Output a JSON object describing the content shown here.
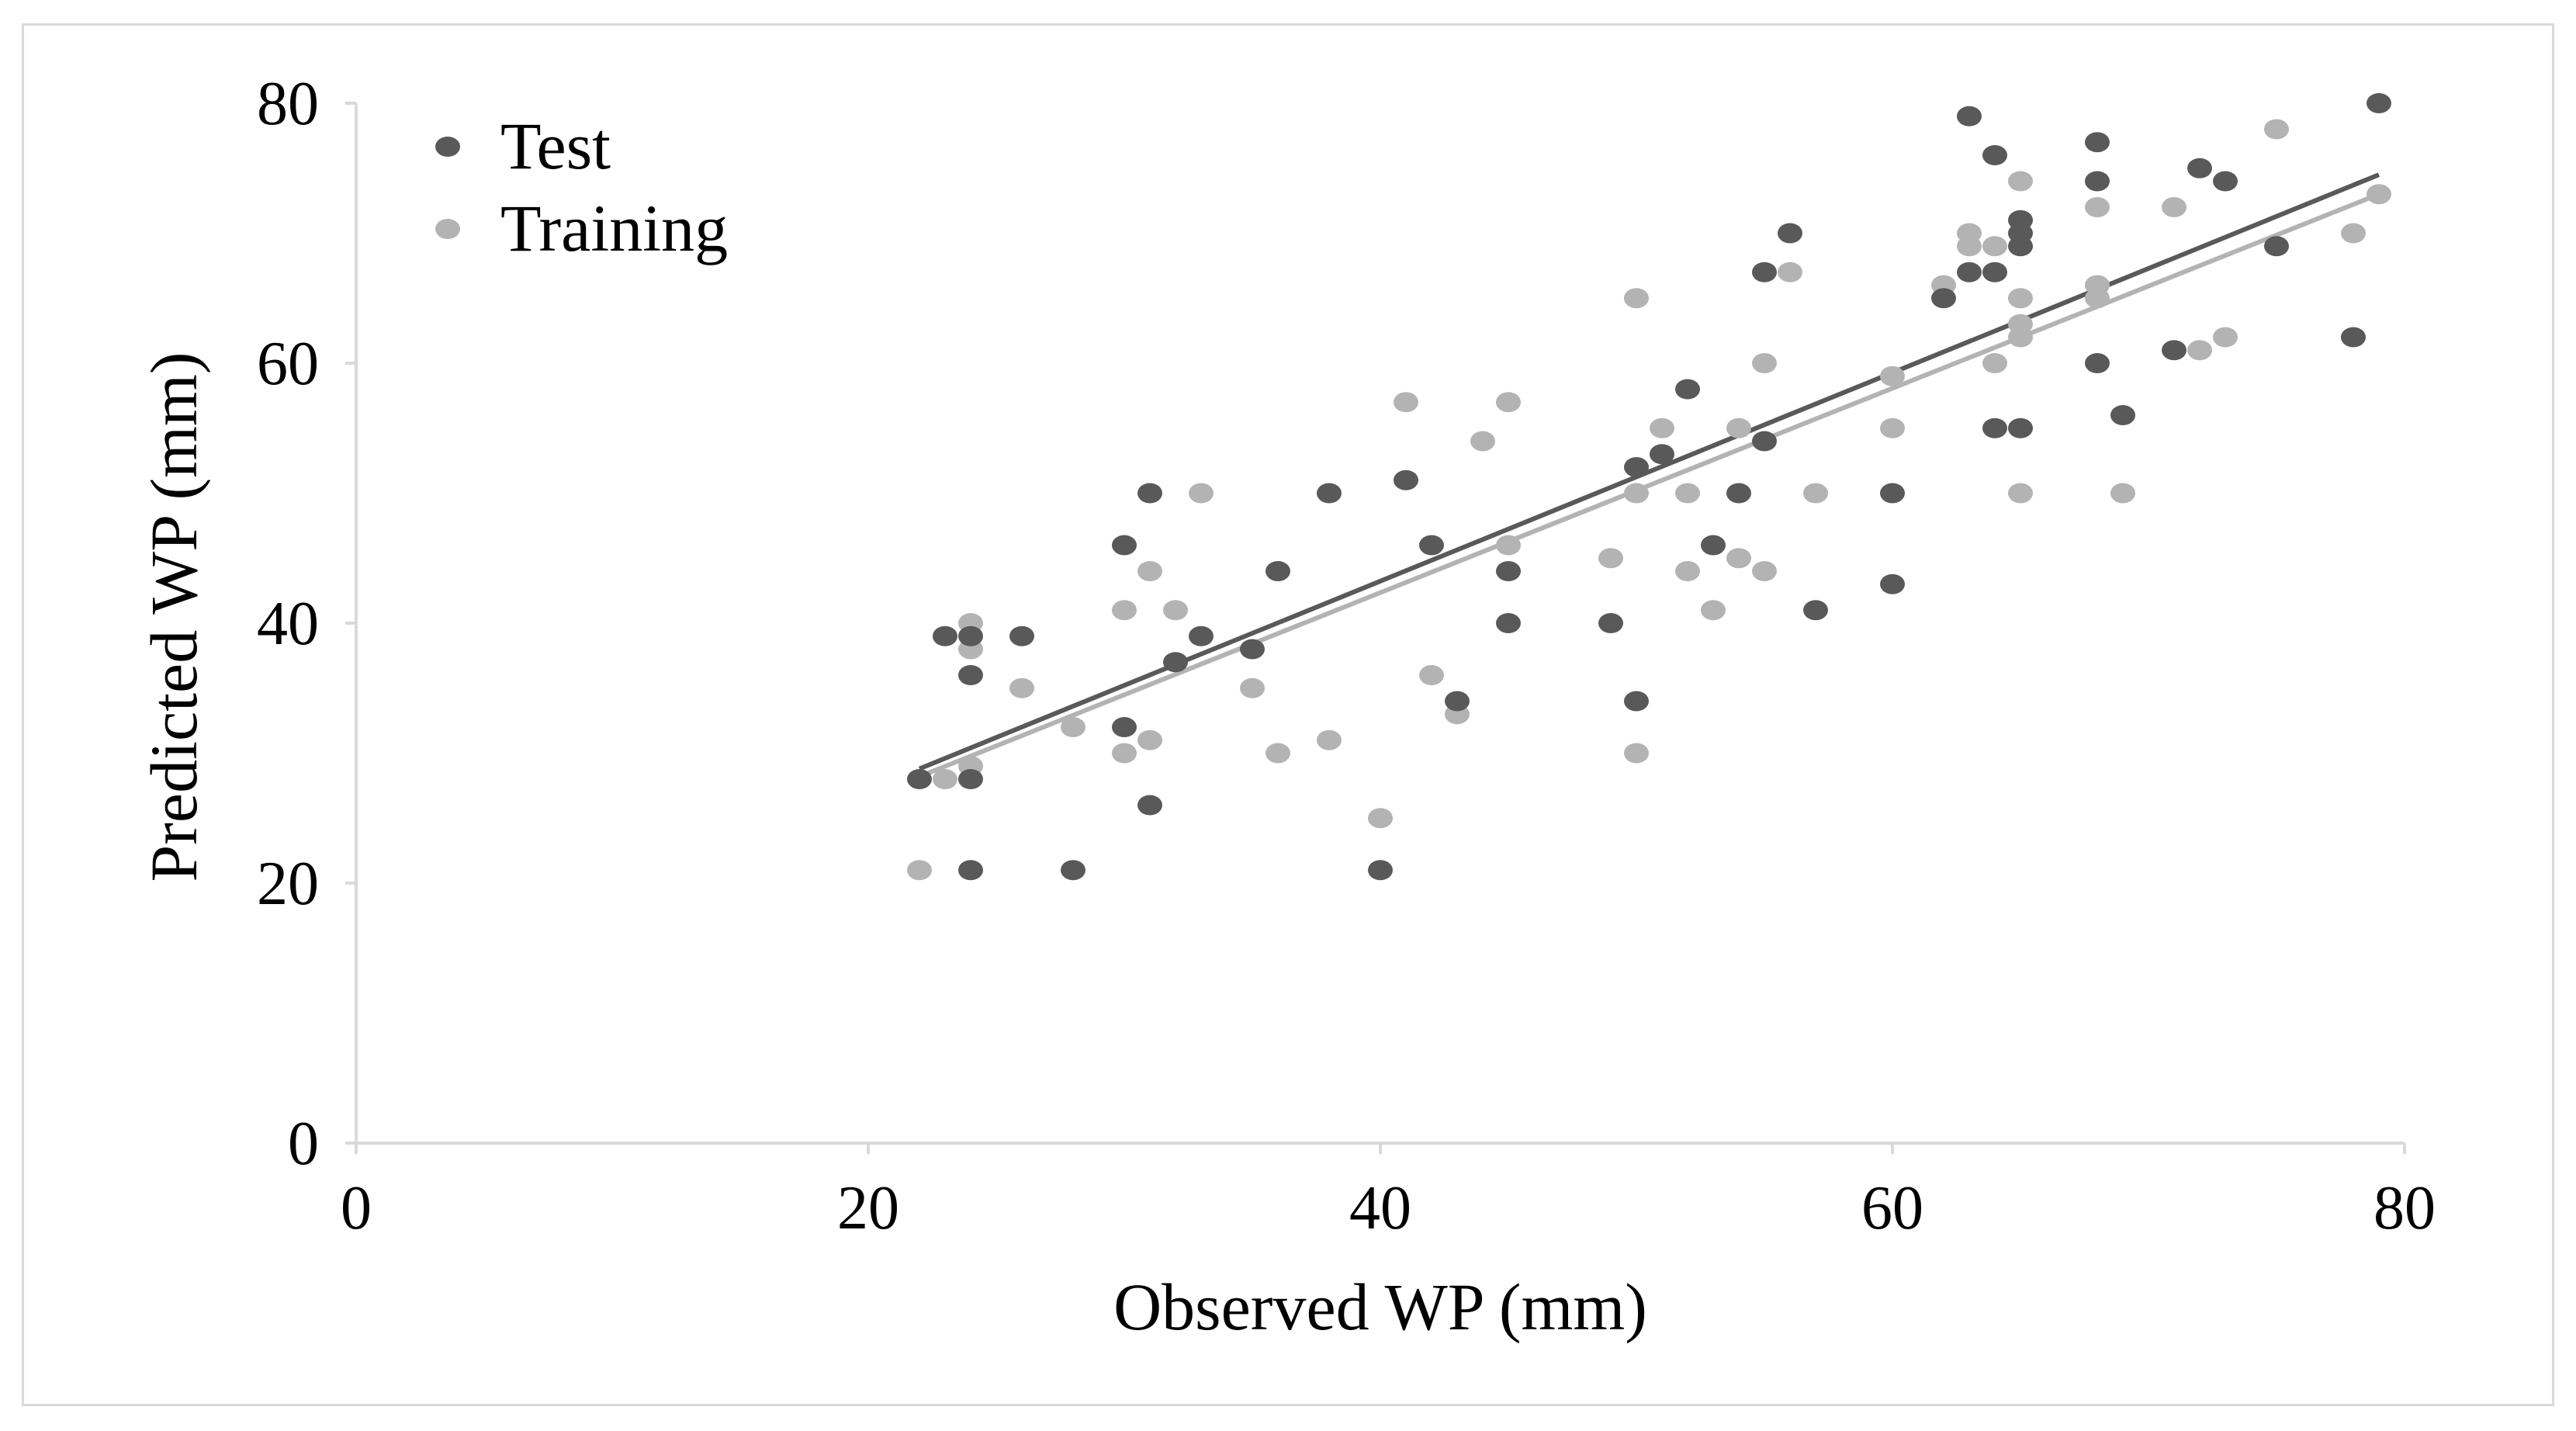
{
  "chart_data": {
    "type": "scatter",
    "title": "",
    "xlabel": "Observed WP (mm)",
    "ylabel": "Predicted WP (mm)",
    "xlim": [
      0,
      80
    ],
    "ylim": [
      0,
      80
    ],
    "xticks": [
      0,
      20,
      40,
      60,
      80
    ],
    "yticks": [
      0,
      20,
      40,
      60,
      80
    ],
    "grid": false,
    "legend_position": "top-left",
    "series": [
      {
        "name": "Test",
        "color": "#595959",
        "points": [
          [
            22,
            28
          ],
          [
            23,
            39
          ],
          [
            24,
            36
          ],
          [
            24,
            28
          ],
          [
            24,
            21
          ],
          [
            24,
            39
          ],
          [
            26,
            39
          ],
          [
            28,
            21
          ],
          [
            30,
            46
          ],
          [
            30,
            32
          ],
          [
            31,
            50
          ],
          [
            31,
            26
          ],
          [
            32,
            37
          ],
          [
            33,
            39
          ],
          [
            35,
            38
          ],
          [
            36,
            44
          ],
          [
            38,
            50
          ],
          [
            40,
            21
          ],
          [
            41,
            51
          ],
          [
            42,
            46
          ],
          [
            43,
            34
          ],
          [
            45,
            44
          ],
          [
            45,
            40
          ],
          [
            49,
            40
          ],
          [
            50,
            52
          ],
          [
            50,
            34
          ],
          [
            51,
            53
          ],
          [
            52,
            58
          ],
          [
            53,
            46
          ],
          [
            54,
            50
          ],
          [
            55,
            67
          ],
          [
            55,
            54
          ],
          [
            56,
            70
          ],
          [
            57,
            41
          ],
          [
            60,
            50
          ],
          [
            60,
            43
          ],
          [
            62,
            65
          ],
          [
            63,
            79
          ],
          [
            63,
            67
          ],
          [
            64,
            76
          ],
          [
            64,
            67
          ],
          [
            64,
            55
          ],
          [
            65,
            71
          ],
          [
            65,
            70
          ],
          [
            65,
            69
          ],
          [
            65,
            55
          ],
          [
            68,
            77
          ],
          [
            68,
            74
          ],
          [
            68,
            60
          ],
          [
            69,
            56
          ],
          [
            71,
            61
          ],
          [
            72,
            75
          ],
          [
            73,
            74
          ],
          [
            75,
            69
          ],
          [
            78,
            62
          ],
          [
            79,
            80
          ]
        ],
        "trendline": {
          "x": [
            22,
            79
          ],
          "y": [
            28.8,
            74.5
          ]
        }
      },
      {
        "name": "Training",
        "color": "#b3b3b3",
        "points": [
          [
            22,
            21
          ],
          [
            23,
            28
          ],
          [
            24,
            40
          ],
          [
            24,
            38
          ],
          [
            24,
            29
          ],
          [
            26,
            35
          ],
          [
            28,
            32
          ],
          [
            30,
            41
          ],
          [
            30,
            30
          ],
          [
            31,
            44
          ],
          [
            31,
            31
          ],
          [
            32,
            41
          ],
          [
            33,
            50
          ],
          [
            35,
            35
          ],
          [
            36,
            30
          ],
          [
            38,
            31
          ],
          [
            40,
            25
          ],
          [
            41,
            57
          ],
          [
            42,
            36
          ],
          [
            43,
            33
          ],
          [
            44,
            54
          ],
          [
            45,
            57
          ],
          [
            45,
            46
          ],
          [
            49,
            45
          ],
          [
            50,
            65
          ],
          [
            50,
            50
          ],
          [
            50,
            30
          ],
          [
            51,
            55
          ],
          [
            52,
            50
          ],
          [
            52,
            44
          ],
          [
            53,
            41
          ],
          [
            54,
            55
          ],
          [
            54,
            45
          ],
          [
            55,
            60
          ],
          [
            55,
            44
          ],
          [
            56,
            67
          ],
          [
            57,
            50
          ],
          [
            60,
            59
          ],
          [
            60,
            55
          ],
          [
            62,
            66
          ],
          [
            63,
            70
          ],
          [
            63,
            69
          ],
          [
            64,
            69
          ],
          [
            64,
            60
          ],
          [
            65,
            74
          ],
          [
            65,
            65
          ],
          [
            65,
            63
          ],
          [
            65,
            62
          ],
          [
            65,
            50
          ],
          [
            68,
            72
          ],
          [
            68,
            66
          ],
          [
            68,
            65
          ],
          [
            69,
            50
          ],
          [
            71,
            72
          ],
          [
            72,
            61
          ],
          [
            73,
            62
          ],
          [
            75,
            78
          ],
          [
            78,
            70
          ],
          [
            79,
            73
          ]
        ],
        "trendline": {
          "x": [
            22,
            79
          ],
          "y": [
            28.2,
            73.0
          ]
        }
      }
    ]
  }
}
